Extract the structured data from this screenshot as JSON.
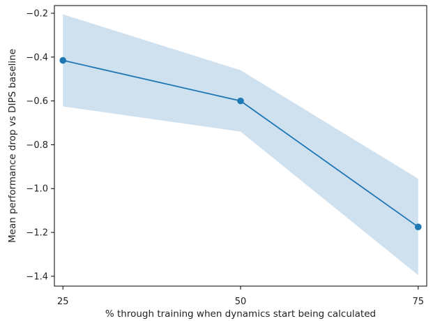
{
  "chart_data": {
    "type": "line",
    "title": "",
    "xlabel": "% through training when dynamics start being calculated",
    "ylabel": "Mean performance drop vs DIPS baseline",
    "x": [
      25,
      50,
      75
    ],
    "x_tick_labels": [
      "25",
      "50",
      "75"
    ],
    "y_ticks": [
      -1.4,
      -1.2,
      -1.0,
      -0.8,
      -0.6,
      -0.4,
      -0.2
    ],
    "y_tick_labels": [
      "−1.4",
      "−1.2",
      "−1.0",
      "−0.8",
      "−0.6",
      "−0.4",
      "−0.2"
    ],
    "xlim": [
      23.8,
      76.2
    ],
    "ylim": [
      -1.445,
      -0.165
    ],
    "series": [
      {
        "values": [
          -0.415,
          -0.6,
          -1.175
        ],
        "lower": [
          -0.625,
          -0.74,
          -1.395
        ],
        "upper": [
          -0.205,
          -0.46,
          -0.955
        ],
        "color": "#1f77b4",
        "band_color": "#cfe0ef"
      }
    ],
    "grid": false,
    "legend": "none"
  }
}
